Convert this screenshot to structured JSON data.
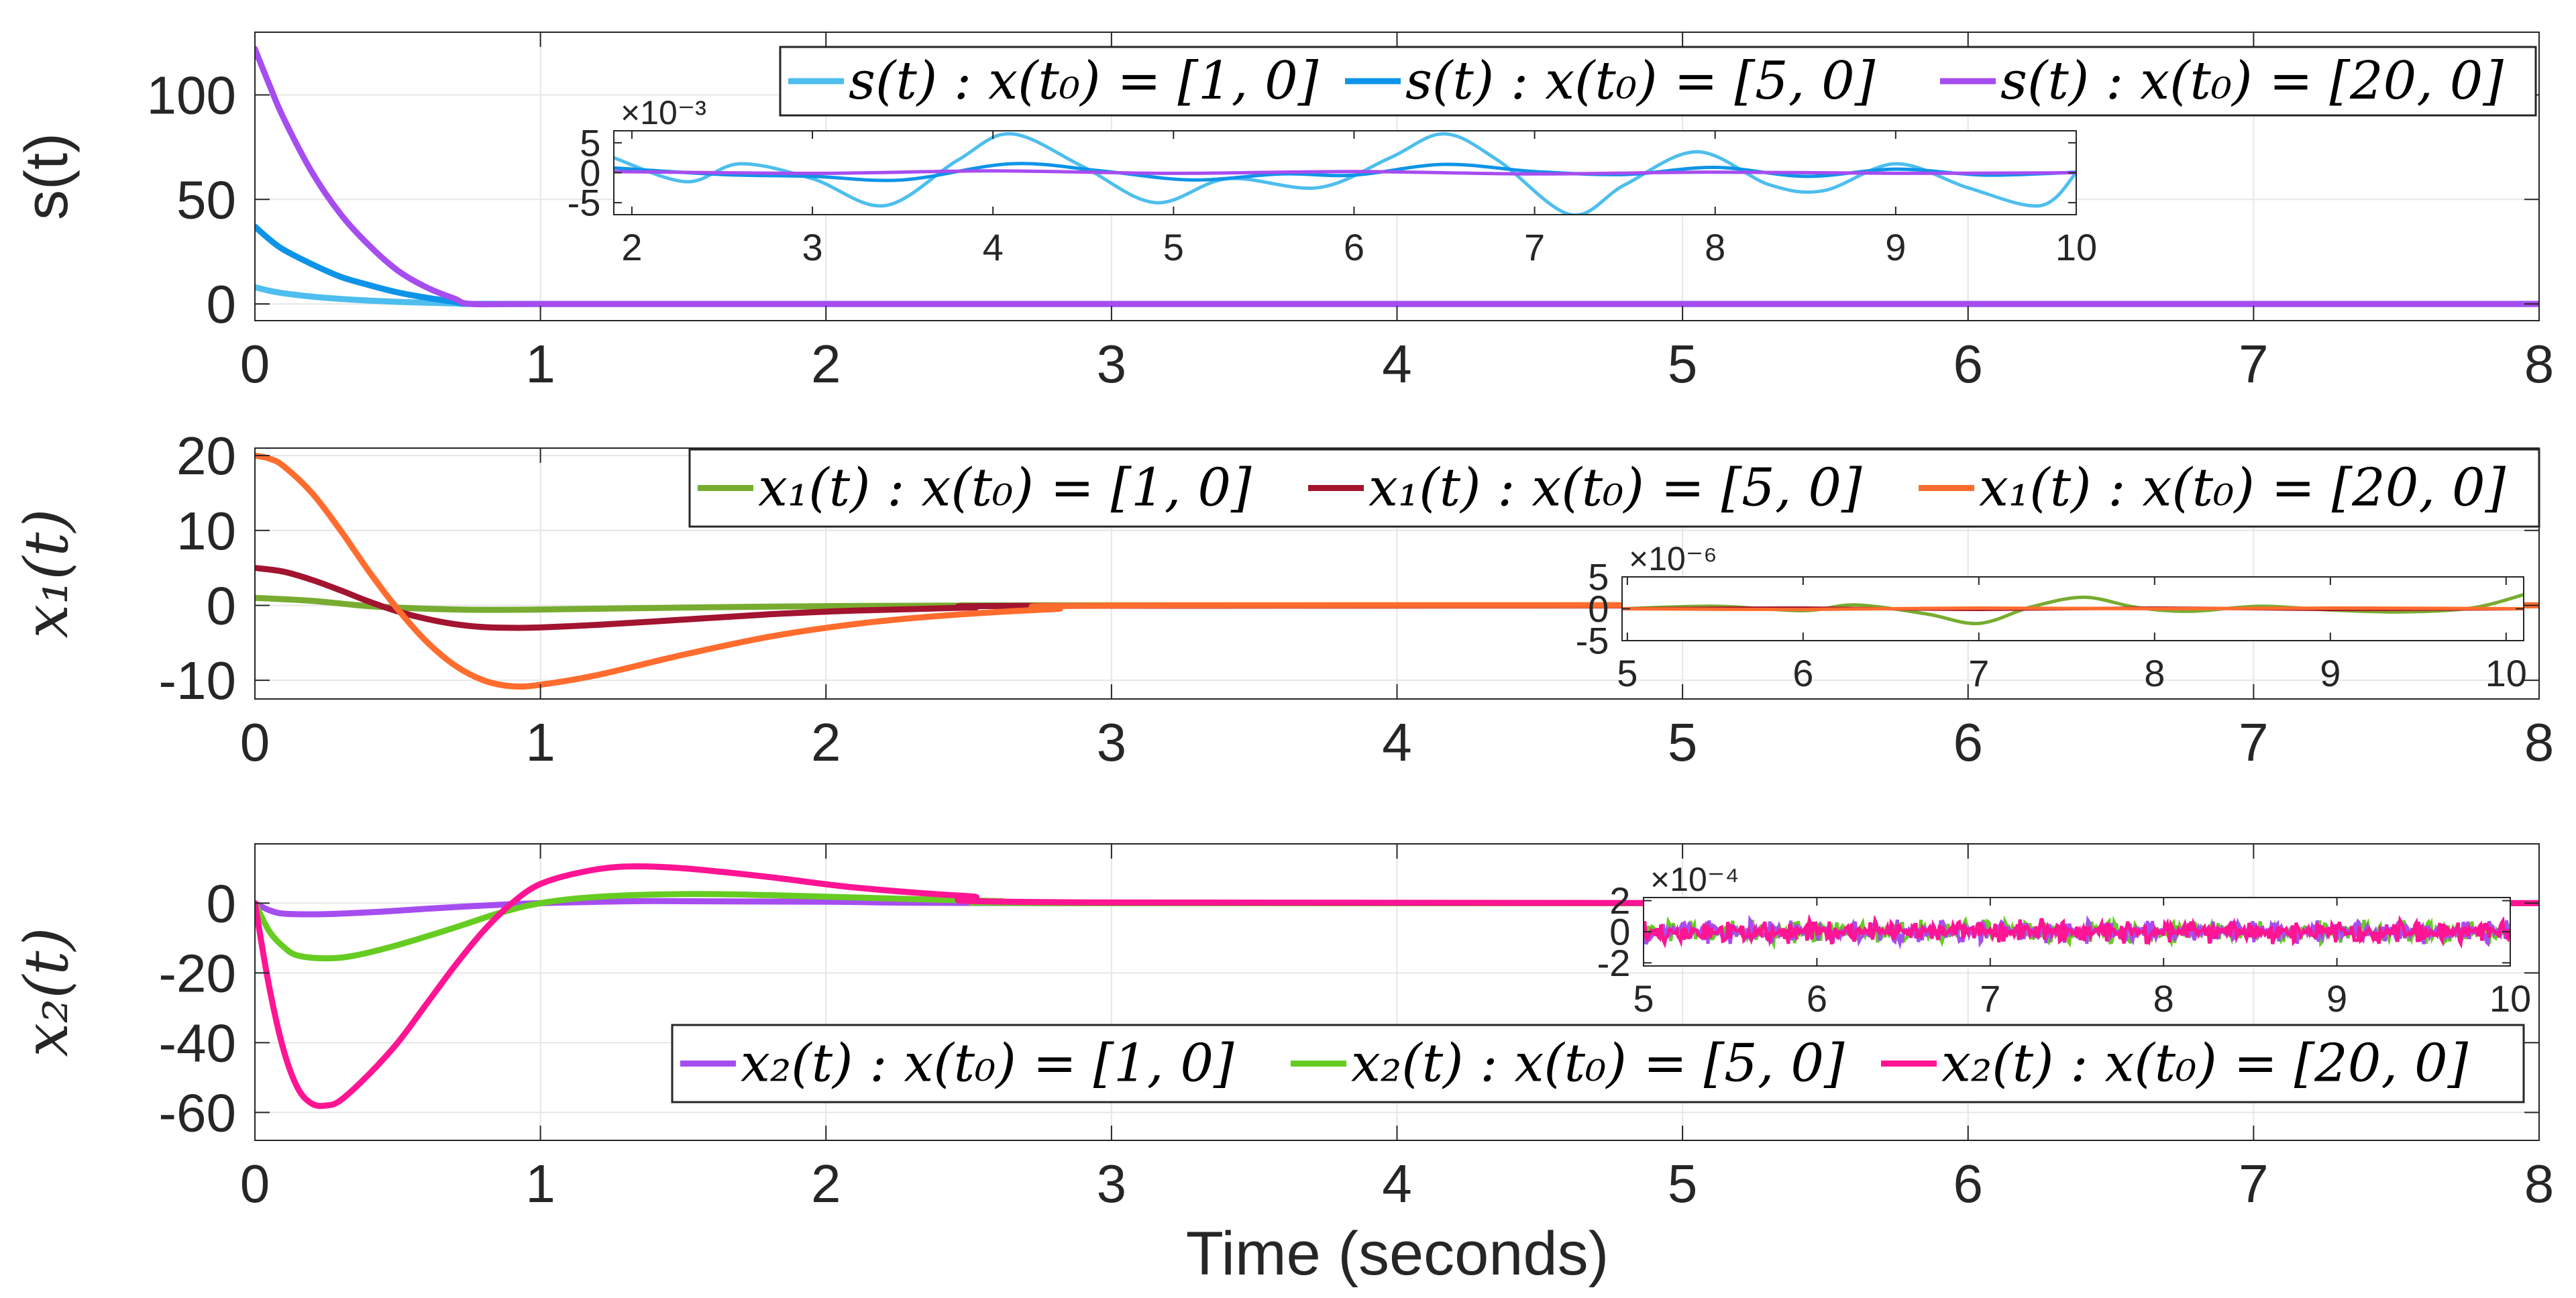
{
  "figure": {
    "xlabel": "Time (seconds)"
  },
  "chart_data": [
    {
      "id": "s",
      "type": "line",
      "ylabel": "s(t)",
      "ylabel_math": false,
      "xlim": [
        0,
        8
      ],
      "ylim": [
        -8,
        130
      ],
      "xticks": [
        0,
        1,
        2,
        3,
        4,
        5,
        6,
        7,
        8
      ],
      "yticks": [
        0,
        50,
        100
      ],
      "xtick_labels": [
        "0",
        "1",
        "2",
        "3",
        "4",
        "5",
        "6",
        "7",
        "8"
      ],
      "ytick_labels": [
        "0",
        "50",
        "100"
      ],
      "grid": true,
      "legend": "top-right",
      "series": [
        {
          "name": "s(t) : x(t₀) = [1, 0]",
          "color": "#4DBEEE",
          "x": [
            0,
            0.05,
            0.1,
            0.2,
            0.3,
            0.4,
            0.5,
            0.6,
            0.7,
            0.76,
            1,
            2,
            3,
            4,
            5,
            6,
            7,
            8
          ],
          "y": [
            8,
            6.3,
            5.1,
            3.5,
            2.4,
            1.6,
            1.0,
            0.6,
            0.2,
            0,
            0,
            0,
            0,
            0,
            0,
            0,
            0,
            0
          ]
        },
        {
          "name": "s(t) : x(t₀) = [5, 0]",
          "color": "#0D94E8",
          "x": [
            0,
            0.05,
            0.1,
            0.2,
            0.3,
            0.4,
            0.5,
            0.6,
            0.7,
            0.76,
            1,
            2,
            3,
            4,
            5,
            6,
            7,
            8
          ],
          "y": [
            37,
            31,
            26,
            19,
            13,
            9,
            5.5,
            3,
            1,
            0,
            0,
            0,
            0,
            0,
            0,
            0,
            0,
            0
          ]
        },
        {
          "name": "s(t) : x(t₀) = [20, 0]",
          "color": "#A64DF0",
          "x": [
            0,
            0.05,
            0.1,
            0.2,
            0.3,
            0.4,
            0.5,
            0.6,
            0.7,
            0.76,
            1,
            2,
            3,
            4,
            5,
            6,
            7,
            8
          ],
          "y": [
            122,
            105,
            89,
            63,
            43,
            28,
            16,
            8,
            2.5,
            0,
            0,
            0,
            0,
            0,
            0,
            0,
            0,
            0
          ]
        }
      ],
      "inset": {
        "xlim": [
          1.9,
          10
        ],
        "ylim": [
          -7,
          7
        ],
        "xticks": [
          2,
          3,
          4,
          5,
          6,
          7,
          8,
          9,
          10
        ],
        "yticks": [
          -5,
          0,
          5
        ],
        "xtick_labels": [
          "2",
          "3",
          "4",
          "5",
          "6",
          "7",
          "8",
          "9",
          "10"
        ],
        "ytick_labels": [
          "-5",
          "0",
          "5"
        ],
        "exponent": "×10⁻³",
        "series": [
          {
            "color": "#4DBEEE",
            "x": [
              1.9,
              2.3,
              2.6,
              3.0,
              3.4,
              3.8,
              4.1,
              4.5,
              4.9,
              5.3,
              5.8,
              6.2,
              6.5,
              6.8,
              7.2,
              7.5,
              7.9,
              8.3,
              8.6,
              9.0,
              9.4,
              9.8,
              10.0
            ],
            "y": [
              2.5,
              -1.5,
              1.5,
              -1,
              -5.5,
              2,
              6.5,
              1,
              -5,
              -1,
              -2.5,
              2.5,
              6.5,
              2,
              -7,
              -2,
              3.5,
              -2,
              -3,
              1.5,
              -2.5,
              -5.5,
              0
            ]
          },
          {
            "color": "#0D94E8",
            "x": [
              1.9,
              2.5,
              3.0,
              3.5,
              4.1,
              4.6,
              5.1,
              5.6,
              6.0,
              6.5,
              7.0,
              7.5,
              8.0,
              8.5,
              9.0,
              9.5,
              10.0
            ],
            "y": [
              0.8,
              -0.3,
              -0.6,
              -1.2,
              1.5,
              0.3,
              -1.2,
              -0.2,
              -0.4,
              1.4,
              0.2,
              -0.3,
              0.9,
              -0.6,
              0.6,
              -0.4,
              0.1
            ]
          },
          {
            "color": "#A64DF0",
            "x": [
              1.9,
              3.0,
              4.0,
              5.0,
              6.0,
              7.0,
              8.0,
              9.0,
              10.0
            ],
            "y": [
              0.2,
              -0.1,
              0.3,
              -0.1,
              0.2,
              -0.2,
              0.1,
              -0.1,
              0
            ]
          }
        ]
      }
    },
    {
      "id": "x1",
      "type": "line",
      "ylabel": "x₁(t)",
      "ylabel_math": true,
      "xlim": [
        0,
        8
      ],
      "ylim": [
        -12.5,
        21
      ],
      "xticks": [
        0,
        1,
        2,
        3,
        4,
        5,
        6,
        7,
        8
      ],
      "yticks": [
        -10,
        0,
        10,
        20
      ],
      "xtick_labels": [
        "0",
        "1",
        "2",
        "3",
        "4",
        "5",
        "6",
        "7",
        "8"
      ],
      "ytick_labels": [
        "-10",
        "0",
        "10",
        "20"
      ],
      "grid": true,
      "legend": "top-right",
      "series": [
        {
          "name": "x₁(t) : x(t₀) = [1, 0]",
          "color": "#77AC30",
          "x": [
            0,
            0.2,
            0.4,
            0.6,
            0.8,
            1.0,
            1.3,
            1.6,
            2.0,
            2.5,
            3.0,
            8
          ],
          "y": [
            1,
            0.6,
            -0.1,
            -0.45,
            -0.6,
            -0.55,
            -0.4,
            -0.25,
            -0.1,
            -0.03,
            0,
            0
          ]
        },
        {
          "name": "x₁(t) : x(t₀) = [5, 0]",
          "color": "#A2142F",
          "x": [
            0,
            0.1,
            0.2,
            0.3,
            0.4,
            0.5,
            0.6,
            0.7,
            0.8,
            0.9,
            1.0,
            1.2,
            1.5,
            1.8,
            2.1,
            2.5,
            3.0,
            8
          ],
          "y": [
            5,
            4.5,
            3.4,
            2.0,
            0.5,
            -0.8,
            -1.8,
            -2.5,
            -2.9,
            -3.0,
            -2.95,
            -2.6,
            -1.9,
            -1.2,
            -0.7,
            -0.3,
            -0.05,
            0
          ]
        },
        {
          "name": "x₁(t) : x(t₀) = [20, 0]",
          "color": "#FF6C2E",
          "x": [
            0,
            0.05,
            0.1,
            0.2,
            0.3,
            0.4,
            0.5,
            0.6,
            0.7,
            0.8,
            0.9,
            1.0,
            1.2,
            1.5,
            1.8,
            2.1,
            2.4,
            2.8,
            3.2,
            8
          ],
          "y": [
            20,
            19.6,
            18.6,
            15,
            10,
            4.5,
            -0.5,
            -4.8,
            -8,
            -10,
            -10.8,
            -10.6,
            -9.3,
            -6.6,
            -4.2,
            -2.5,
            -1.4,
            -0.5,
            0,
            0
          ]
        }
      ],
      "inset": {
        "xlim": [
          4.97,
          10.1
        ],
        "ylim": [
          -5,
          5
        ],
        "xticks": [
          5,
          6,
          7,
          8,
          9,
          10
        ],
        "yticks": [
          -5,
          0,
          5
        ],
        "xtick_labels": [
          "5",
          "6",
          "7",
          "8",
          "9",
          "10"
        ],
        "ytick_labels": [
          "-5",
          "0",
          "5"
        ],
        "exponent": "×10⁻⁶",
        "series": [
          {
            "color": "#77AC30",
            "x": [
              4.97,
              5.5,
              6.0,
              6.3,
              6.7,
              7.0,
              7.3,
              7.6,
              7.9,
              8.2,
              8.6,
              9.0,
              9.4,
              9.8,
              10.1
            ],
            "y": [
              0,
              0.4,
              -0.3,
              0.6,
              -0.8,
              -2.3,
              0.3,
              1.8,
              0.2,
              -0.4,
              0.4,
              -0.2,
              -0.5,
              0.1,
              2.2
            ]
          },
          {
            "color": "#A2142F",
            "x": [
              4.97,
              6.0,
              7.0,
              8.0,
              9.0,
              10.1
            ],
            "y": [
              0,
              0.1,
              -0.1,
              0.1,
              -0.1,
              0
            ]
          },
          {
            "color": "#FF6C2E",
            "x": [
              4.97,
              6.0,
              7.0,
              8.0,
              9.0,
              10.1
            ],
            "y": [
              0,
              -0.1,
              0.1,
              0,
              0.1,
              0
            ]
          }
        ]
      }
    },
    {
      "id": "x2",
      "type": "line",
      "ylabel": "x₂(t)",
      "ylabel_math": true,
      "xlim": [
        0,
        8
      ],
      "ylim": [
        -68,
        17
      ],
      "xticks": [
        0,
        1,
        2,
        3,
        4,
        5,
        6,
        7,
        8
      ],
      "yticks": [
        -60,
        -40,
        -20,
        0
      ],
      "xtick_labels": [
        "0",
        "1",
        "2",
        "3",
        "4",
        "5",
        "6",
        "7",
        "8"
      ],
      "ytick_labels": [
        "-60",
        "-40",
        "-20",
        "0"
      ],
      "grid": true,
      "legend": "bottom-right",
      "series": [
        {
          "name": "x₂(t) : x(t₀) = [1, 0]",
          "color": "#A64DF0",
          "x": [
            0,
            0.05,
            0.1,
            0.2,
            0.3,
            0.45,
            0.6,
            0.8,
            1.0,
            1.4,
            2.0,
            3.0,
            8
          ],
          "y": [
            0,
            -2,
            -3,
            -3.2,
            -3,
            -2.4,
            -1.6,
            -0.7,
            0,
            0.6,
            0.4,
            0,
            0
          ]
        },
        {
          "name": "x₂(t) : x(t₀) = [5, 0]",
          "color": "#66CC22",
          "x": [
            0,
            0.05,
            0.1,
            0.15,
            0.25,
            0.35,
            0.5,
            0.7,
            0.85,
            1.0,
            1.2,
            1.5,
            1.8,
            2.2,
            2.6,
            3.0,
            8
          ],
          "y": [
            0,
            -8,
            -12.5,
            -15,
            -15.8,
            -15,
            -12,
            -7,
            -3,
            0,
            1.8,
            2.6,
            2.3,
            1.4,
            0.6,
            0,
            0
          ]
        },
        {
          "name": "x₂(t) : x(t₀) = [20, 0]",
          "color": "#FF1493",
          "x": [
            0,
            0.05,
            0.1,
            0.15,
            0.2,
            0.25,
            0.3,
            0.4,
            0.5,
            0.6,
            0.7,
            0.8,
            0.9,
            1.0,
            1.15,
            1.3,
            1.5,
            1.8,
            2.1,
            2.5,
            3.0,
            8
          ],
          "y": [
            0,
            -24,
            -42,
            -53,
            -57.5,
            -58,
            -56.5,
            -49,
            -40,
            -29,
            -18,
            -8,
            0,
            5.5,
            9,
            10.5,
            10,
            7.5,
            4.5,
            2,
            0.2,
            0
          ]
        }
      ],
      "inset": {
        "xlim": [
          5,
          10
        ],
        "ylim": [
          -2.2,
          2.2
        ],
        "xticks": [
          5,
          6,
          7,
          8,
          9,
          10
        ],
        "yticks": [
          -2,
          0,
          2
        ],
        "xtick_labels": [
          "5",
          "6",
          "7",
          "8",
          "9",
          "10"
        ],
        "ytick_labels": [
          "-2",
          "0",
          "2"
        ],
        "exponent": "×10⁻⁴",
        "noise_amplitude": 0.8,
        "series": [
          {
            "color": "#66CC22"
          },
          {
            "color": "#A64DF0"
          },
          {
            "color": "#FF1493"
          }
        ]
      }
    }
  ]
}
